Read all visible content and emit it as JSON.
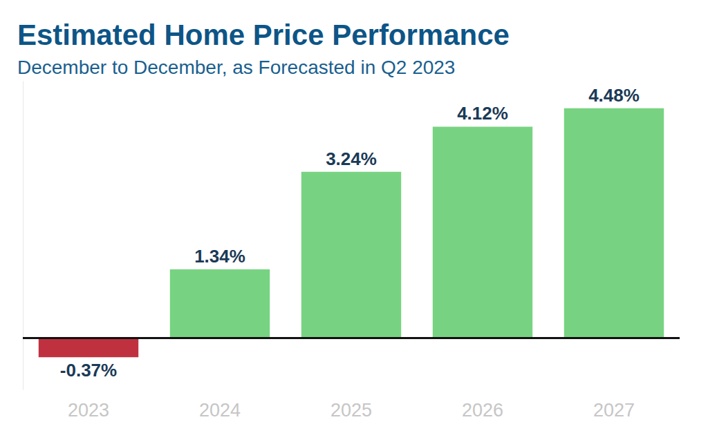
{
  "chart_data": {
    "type": "bar",
    "title": "Estimated Home Price Performance",
    "subtitle": "December to December, as Forecasted in Q2 2023",
    "categories": [
      "2023",
      "2024",
      "2025",
      "2026",
      "2027"
    ],
    "values": [
      -0.37,
      1.34,
      3.24,
      4.12,
      4.48
    ],
    "value_labels": [
      "-0.37%",
      "1.34%",
      "3.24%",
      "4.12%",
      "4.48%"
    ],
    "colors": [
      "#c0313f",
      "#77d381",
      "#77d381",
      "#77d381",
      "#77d381"
    ],
    "ylim": [
      -1,
      5
    ],
    "data_labels": true,
    "grid": false,
    "tick_labels": "x"
  }
}
